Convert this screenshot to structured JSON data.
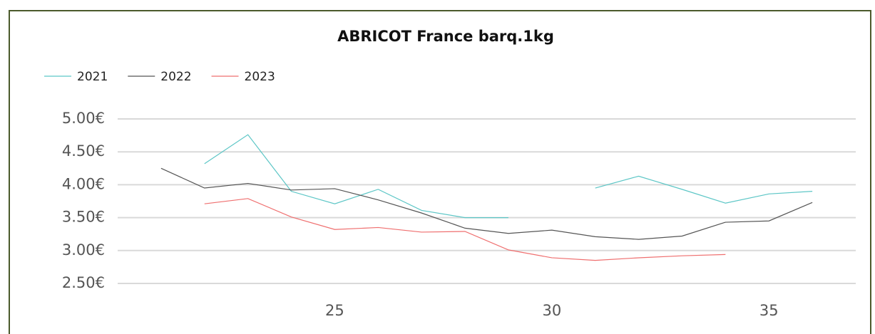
{
  "chart_data": {
    "type": "line",
    "title": "ABRICOT France barq.1kg",
    "x": [
      21,
      22,
      23,
      24,
      25,
      26,
      27,
      28,
      29,
      30,
      31,
      32,
      33,
      34,
      35,
      36
    ],
    "series": [
      {
        "name": "2021",
        "color": "#5cc6c6",
        "values": [
          null,
          4.32,
          4.76,
          3.9,
          3.71,
          3.93,
          3.61,
          3.5,
          3.5,
          null,
          3.95,
          4.13,
          3.93,
          3.72,
          3.86,
          3.9
        ]
      },
      {
        "name": "2022",
        "color": "#555555",
        "values": [
          4.25,
          3.95,
          4.02,
          3.92,
          3.94,
          3.77,
          3.57,
          3.34,
          3.26,
          3.31,
          3.21,
          3.17,
          3.22,
          3.43,
          3.45,
          3.73
        ]
      },
      {
        "name": "2023",
        "color": "#ef6f6f",
        "values": [
          null,
          3.71,
          3.79,
          3.51,
          3.32,
          3.35,
          3.28,
          3.29,
          3.01,
          2.89,
          2.85,
          2.89,
          2.92,
          2.94,
          null,
          null
        ]
      }
    ],
    "xlim": [
      20,
      37
    ],
    "xticks": [
      25,
      30,
      35
    ],
    "ylim": [
      2.5,
      5
    ],
    "yticks": [
      {
        "value": 5,
        "label": "5.00€"
      },
      {
        "value": 4.5,
        "label": "4.50€"
      },
      {
        "value": 4,
        "label": "4.00€"
      },
      {
        "value": 3.5,
        "label": "3.50€"
      },
      {
        "value": 3,
        "label": "3.00€"
      },
      {
        "value": 2.5,
        "label": "2.50€"
      }
    ],
    "grid": true,
    "legend": "top-left"
  }
}
